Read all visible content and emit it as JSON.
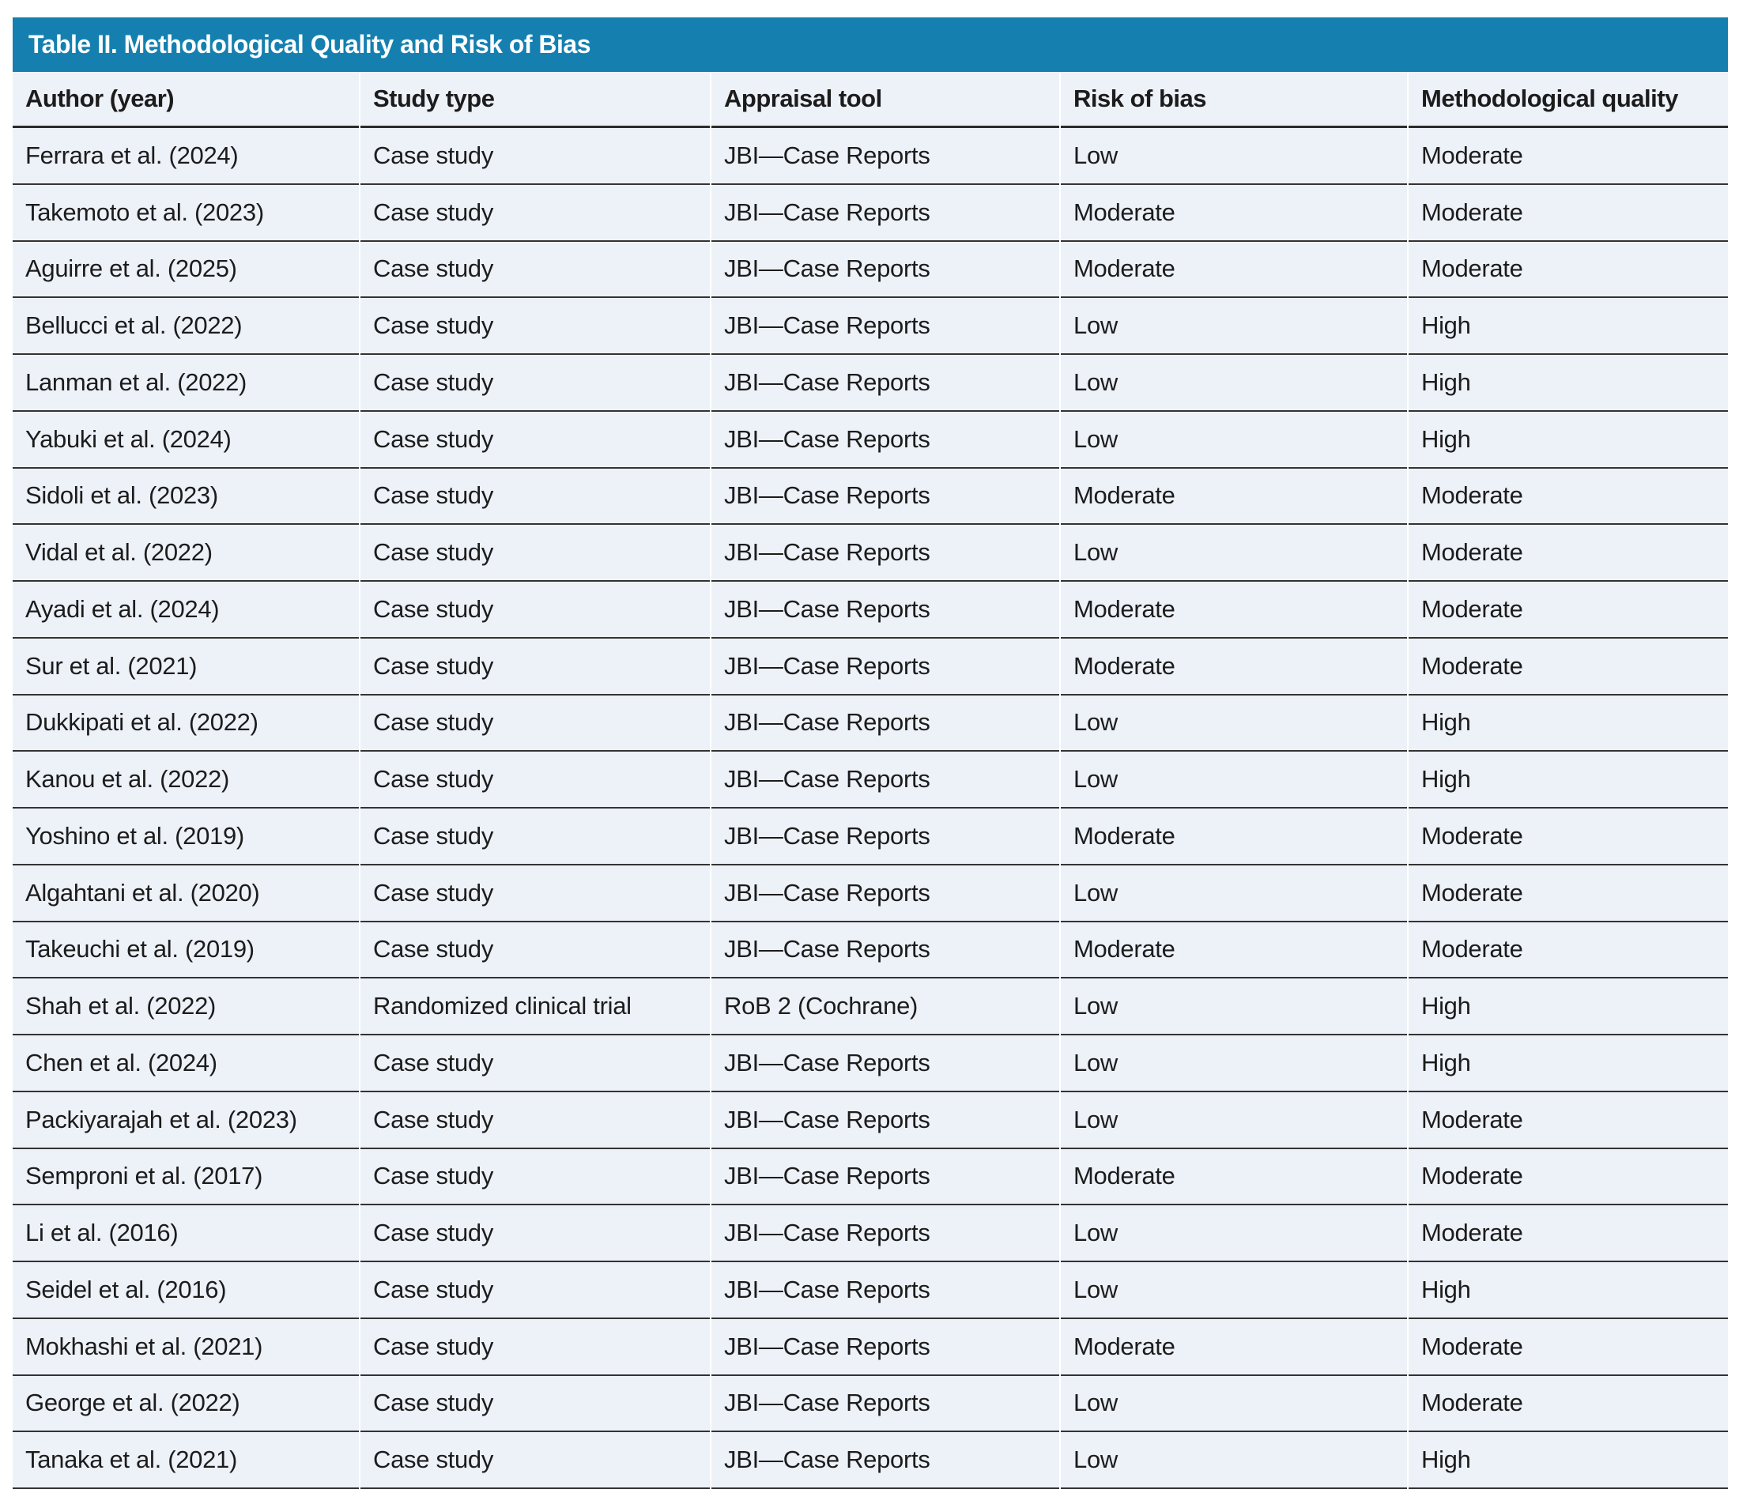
{
  "table": {
    "title": "Table II. Methodological Quality and Risk of Bias",
    "columns": [
      "Author (year)",
      "Study type",
      "Appraisal tool",
      "Risk of bias",
      "Methodological quality"
    ],
    "rows": [
      {
        "author": "Ferrara et al. (2024)",
        "study_type": "Case study",
        "appraisal_tool": "JBI—Case Reports",
        "risk_of_bias": "Low",
        "methodological_quality": "Moderate"
      },
      {
        "author": "Takemoto et al. (2023)",
        "study_type": "Case study",
        "appraisal_tool": "JBI—Case Reports",
        "risk_of_bias": "Moderate",
        "methodological_quality": "Moderate"
      },
      {
        "author": "Aguirre et al. (2025)",
        "study_type": "Case study",
        "appraisal_tool": "JBI—Case Reports",
        "risk_of_bias": "Moderate",
        "methodological_quality": "Moderate"
      },
      {
        "author": "Bellucci et al. (2022)",
        "study_type": "Case study",
        "appraisal_tool": "JBI—Case Reports",
        "risk_of_bias": "Low",
        "methodological_quality": "High"
      },
      {
        "author": "Lanman et al. (2022)",
        "study_type": "Case study",
        "appraisal_tool": "JBI—Case Reports",
        "risk_of_bias": "Low",
        "methodological_quality": "High"
      },
      {
        "author": "Yabuki et al. (2024)",
        "study_type": "Case study",
        "appraisal_tool": "JBI—Case Reports",
        "risk_of_bias": "Low",
        "methodological_quality": "High"
      },
      {
        "author": "Sidoli et al. (2023)",
        "study_type": "Case study",
        "appraisal_tool": "JBI—Case Reports",
        "risk_of_bias": "Moderate",
        "methodological_quality": "Moderate"
      },
      {
        "author": "Vidal et al. (2022)",
        "study_type": "Case study",
        "appraisal_tool": "JBI—Case Reports",
        "risk_of_bias": "Low",
        "methodological_quality": "Moderate"
      },
      {
        "author": "Ayadi et al. (2024)",
        "study_type": "Case study",
        "appraisal_tool": "JBI—Case Reports",
        "risk_of_bias": "Moderate",
        "methodological_quality": "Moderate"
      },
      {
        "author": "Sur et al. (2021)",
        "study_type": "Case study",
        "appraisal_tool": "JBI—Case Reports",
        "risk_of_bias": "Moderate",
        "methodological_quality": "Moderate"
      },
      {
        "author": "Dukkipati et al. (2022)",
        "study_type": "Case study",
        "appraisal_tool": "JBI—Case Reports",
        "risk_of_bias": "Low",
        "methodological_quality": "High"
      },
      {
        "author": "Kanou et al. (2022)",
        "study_type": "Case study",
        "appraisal_tool": "JBI—Case Reports",
        "risk_of_bias": "Low",
        "methodological_quality": "High"
      },
      {
        "author": "Yoshino et al. (2019)",
        "study_type": "Case study",
        "appraisal_tool": "JBI—Case Reports",
        "risk_of_bias": "Moderate",
        "methodological_quality": "Moderate"
      },
      {
        "author": "Algahtani et al. (2020)",
        "study_type": "Case study",
        "appraisal_tool": "JBI—Case Reports",
        "risk_of_bias": "Low",
        "methodological_quality": "Moderate"
      },
      {
        "author": "Takeuchi et al. (2019)",
        "study_type": "Case study",
        "appraisal_tool": "JBI—Case Reports",
        "risk_of_bias": "Moderate",
        "methodological_quality": "Moderate"
      },
      {
        "author": "Shah et al. (2022)",
        "study_type": "Randomized clinical trial",
        "appraisal_tool": "RoB 2 (Cochrane)",
        "risk_of_bias": "Low",
        "methodological_quality": "High"
      },
      {
        "author": "Chen et al. (2024)",
        "study_type": "Case study",
        "appraisal_tool": "JBI—Case Reports",
        "risk_of_bias": "Low",
        "methodological_quality": "High"
      },
      {
        "author": "Packiyarajah et al. (2023)",
        "study_type": "Case study",
        "appraisal_tool": "JBI—Case Reports",
        "risk_of_bias": "Low",
        "methodological_quality": "Moderate"
      },
      {
        "author": "Semproni et al. (2017)",
        "study_type": "Case study",
        "appraisal_tool": "JBI—Case Reports",
        "risk_of_bias": "Moderate",
        "methodological_quality": "Moderate"
      },
      {
        "author": "Li et al. (2016)",
        "study_type": "Case study",
        "appraisal_tool": "JBI—Case Reports",
        "risk_of_bias": "Low",
        "methodological_quality": "Moderate"
      },
      {
        "author": "Seidel et al. (2016)",
        "study_type": "Case study",
        "appraisal_tool": "JBI—Case Reports",
        "risk_of_bias": "Low",
        "methodological_quality": "High"
      },
      {
        "author": "Mokhashi et al. (2021)",
        "study_type": "Case study",
        "appraisal_tool": "JBI—Case Reports",
        "risk_of_bias": "Moderate",
        "methodological_quality": "Moderate"
      },
      {
        "author": "George et al. (2022)",
        "study_type": "Case study",
        "appraisal_tool": "JBI—Case Reports",
        "risk_of_bias": "Low",
        "methodological_quality": "Moderate"
      },
      {
        "author": "Tanaka et al. (2021)",
        "study_type": "Case study",
        "appraisal_tool": "JBI—Case Reports",
        "risk_of_bias": "Low",
        "methodological_quality": "High"
      }
    ]
  },
  "colors": {
    "title_bar_bg": "#1580b0",
    "title_text": "#ffffff",
    "row_bg": "#edf1f8",
    "rule_color": "#333333",
    "heavy_rule_color": "#2b2b2b",
    "body_text": "#1c1c1c",
    "page_bg": "#ffffff"
  }
}
